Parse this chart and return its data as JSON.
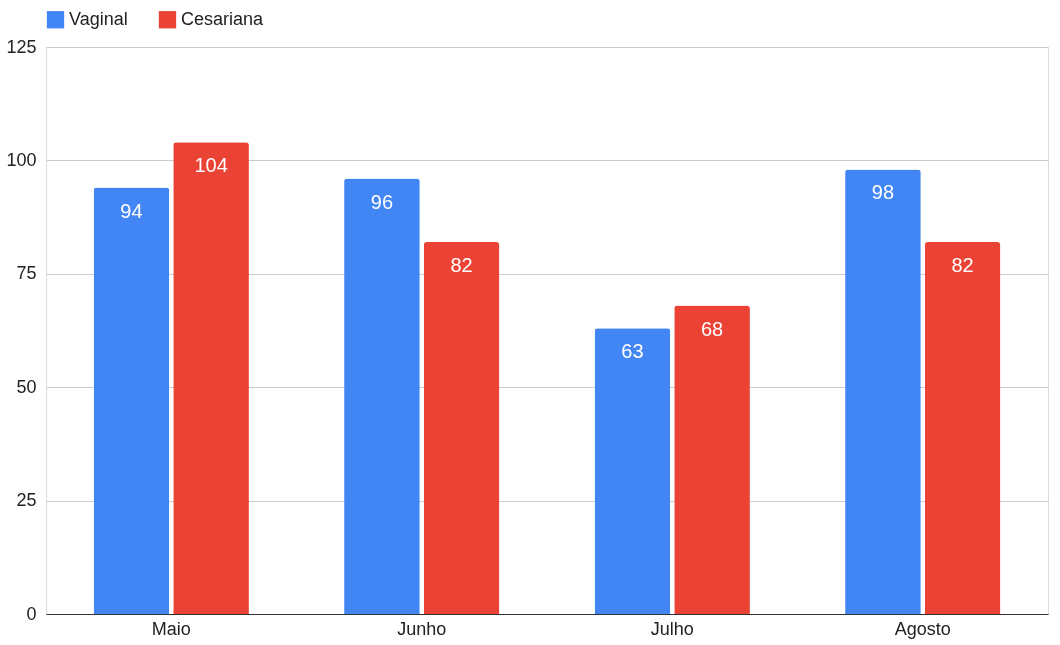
{
  "chart_data": {
    "type": "bar",
    "categories": [
      "Maio",
      "Junho",
      "Julho",
      "Agosto"
    ],
    "series": [
      {
        "name": "Vaginal",
        "color": "#4285f4",
        "values": [
          94,
          96,
          63,
          98
        ]
      },
      {
        "name": "Cesariana",
        "color": "#ea4335",
        "values": [
          104,
          82,
          68,
          82
        ]
      }
    ],
    "ylim": [
      0,
      125
    ],
    "yticks": [
      0,
      25,
      50,
      75,
      100,
      125
    ],
    "grid": "y",
    "legend": "top",
    "data_labels": true
  }
}
